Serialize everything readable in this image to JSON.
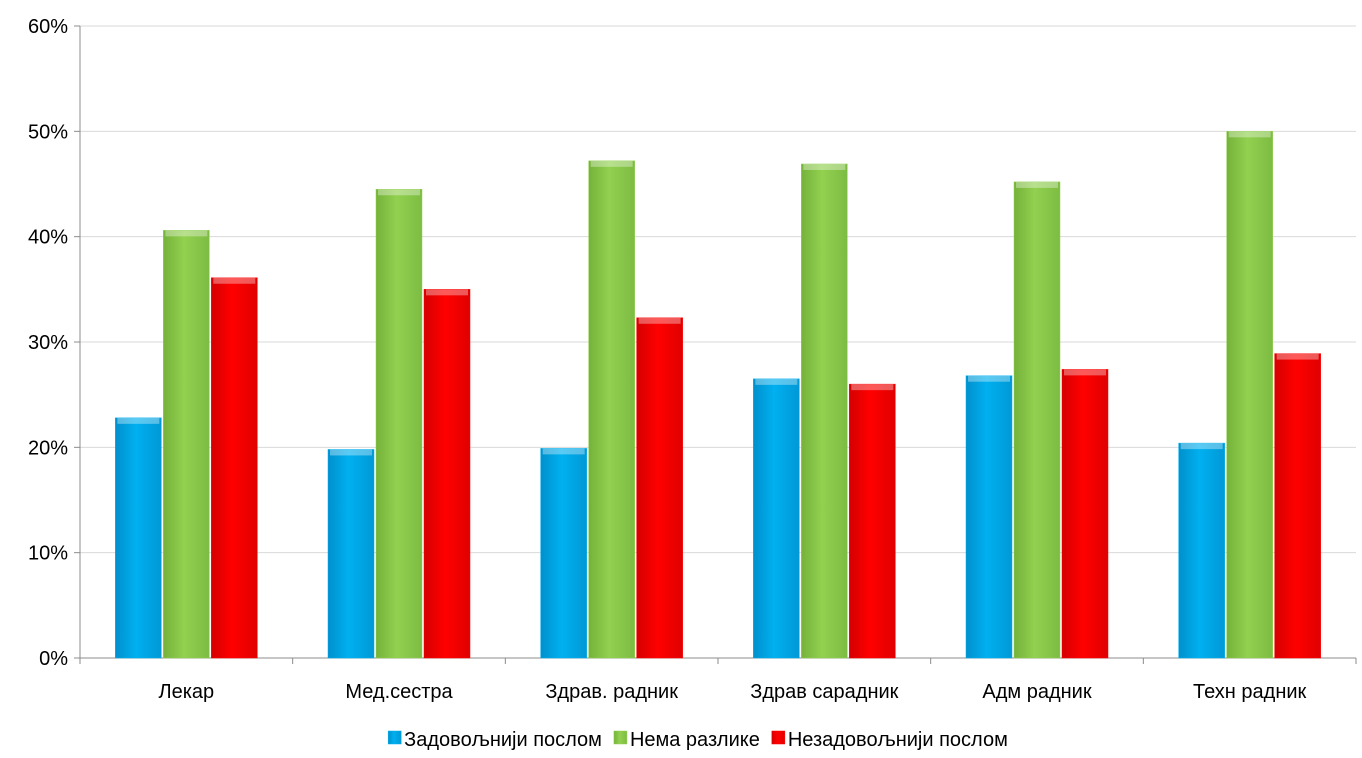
{
  "chart_data": {
    "type": "bar",
    "title": "",
    "xlabel": "",
    "ylabel": "",
    "categories": [
      "Лекар",
      "Мед.сестра",
      "Здрав. радник",
      "Здрав сарадник",
      "Адм радник",
      "Техн радник"
    ],
    "series": [
      {
        "name": "Задовољнији послом",
        "color": "#00B0F0",
        "values": [
          22.8,
          19.8,
          19.9,
          26.5,
          26.8,
          20.4
        ]
      },
      {
        "name": "Нема разлике",
        "color": "#92D050",
        "values": [
          40.6,
          44.5,
          47.2,
          46.9,
          45.2,
          50.0
        ]
      },
      {
        "name": "Незадовољнији послом",
        "color": "#FF0000",
        "values": [
          36.1,
          35.0,
          32.3,
          26.0,
          27.4,
          28.9
        ]
      }
    ],
    "ylim": [
      0,
      60
    ],
    "yticks": [
      "0%",
      "10%",
      "20%",
      "30%",
      "40%",
      "50%",
      "60%"
    ],
    "grid": true,
    "legend_position": "bottom"
  }
}
